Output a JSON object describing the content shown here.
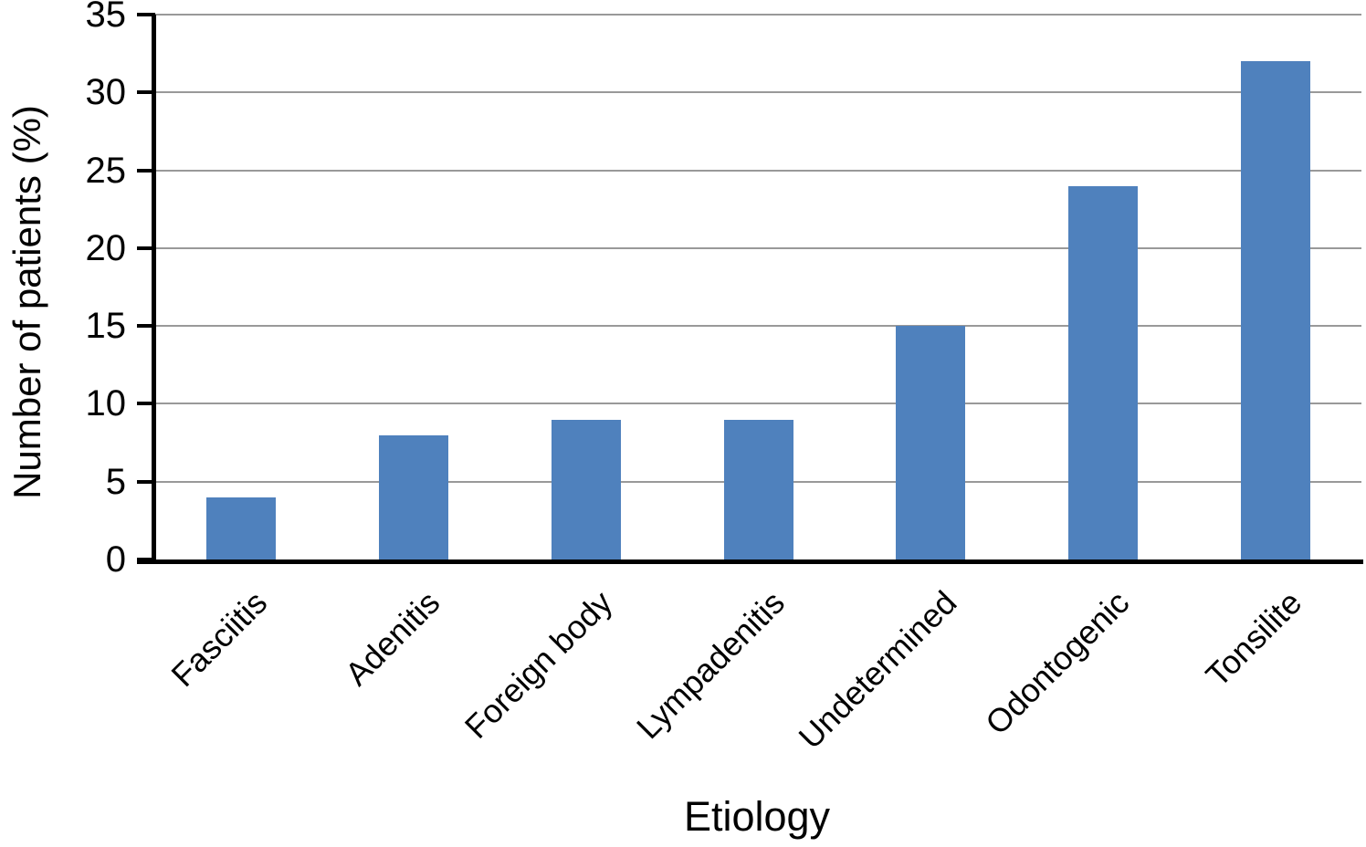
{
  "chart_data": {
    "type": "bar",
    "title": "",
    "categories": [
      "Fasciitis",
      "Adenitis",
      "Foreign body",
      "Lympadenitis",
      "Undetermined",
      "Odontogenic",
      "Tonsilite"
    ],
    "values": [
      4,
      8,
      9,
      9,
      15,
      24,
      32
    ],
    "xlabel": "Etiology",
    "ylabel": "Number of patients (%)",
    "ylim": [
      0,
      35
    ],
    "ytick_step": 5,
    "y_ticks": [
      "0",
      "5",
      "10",
      "15",
      "20",
      "25",
      "30",
      "35"
    ],
    "grid": true,
    "legend": "none",
    "bar_color": "#4f81bd",
    "gridline_color": "#999999",
    "axis_color": "#000000",
    "background_color": "#ffffff"
  }
}
